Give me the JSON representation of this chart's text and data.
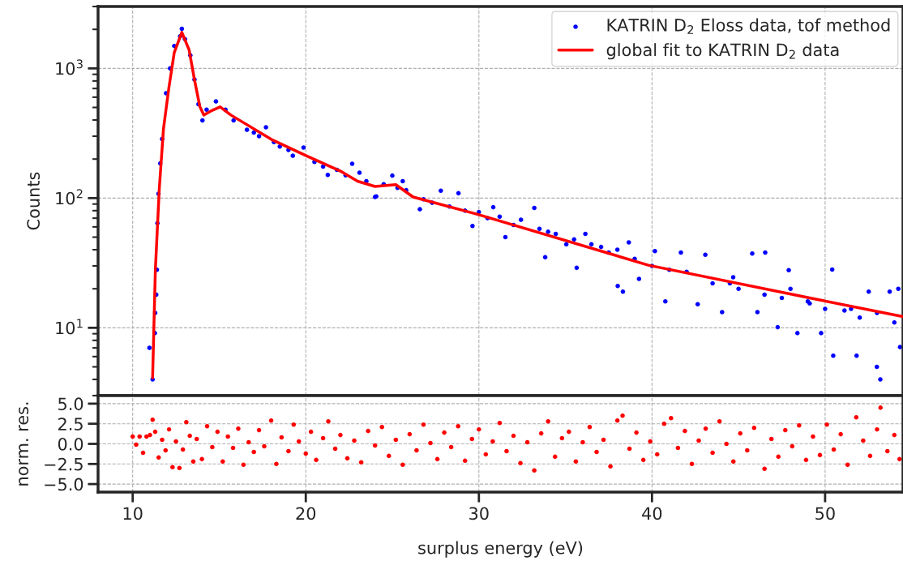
{
  "chart_data": [
    {
      "type": "scatter",
      "ylabel": "Counts",
      "log": "y",
      "xlim": [
        8,
        54.5
      ],
      "ylim": [
        3,
        3000
      ],
      "xticks": [
        10,
        20,
        30,
        40,
        50
      ],
      "yticks": [
        {
          "value": 10,
          "label": "10$^{1}$"
        },
        {
          "value": 100,
          "label": "10$^{2}$"
        },
        {
          "value": 1000,
          "label": "10$^{3}$"
        }
      ],
      "tick_labels": "y",
      "grid": true,
      "legend": "top right",
      "marker": "circle",
      "series": [
        {
          "name": "KATRIN D$_{2}$ Eloss data, tof method",
          "color": "#0000ff",
          "x": [
            10.97,
            11.15,
            11.28,
            11.3,
            11.36,
            11.4,
            11.43,
            11.49,
            11.59,
            11.7,
            11.93,
            12.16,
            12.4,
            12.74,
            12.84,
            13.02,
            13.33,
            13.57,
            13.8,
            14.03,
            14.27,
            14.81,
            15.36,
            15.83,
            16.6,
            17.0,
            17.3,
            17.7,
            18.16,
            18.5,
            19.0,
            19.25,
            19.87,
            20.5,
            21.0,
            21.27,
            21.8,
            22.3,
            22.68,
            23.1,
            23.5,
            24.0,
            24.07,
            24.5,
            25.0,
            25.3,
            25.6,
            25.8,
            26.59,
            26.8,
            27.3,
            27.8,
            28.3,
            28.82,
            29.2,
            29.63,
            30.0,
            30.5,
            30.83,
            31.2,
            31.53,
            32.0,
            32.43,
            33.2,
            33.5,
            33.83,
            34.0,
            34.44,
            35.05,
            35.5,
            35.65,
            36.15,
            36.5,
            37.06,
            37.5,
            38.0,
            38.02,
            38.32,
            38.66,
            39.0,
            39.25,
            40.0,
            40.17,
            40.77,
            41.0,
            41.67,
            42.0,
            42.64,
            43.08,
            43.5,
            44.05,
            44.5,
            44.69,
            45.0,
            45.79,
            46.09,
            46.5,
            46.54,
            47.26,
            47.5,
            47.9,
            48.0,
            48.4,
            49.0,
            49.11,
            49.77,
            50.0,
            50.41,
            50.47,
            51.12,
            51.5,
            51.82,
            52.0,
            52.52,
            52.99,
            53.0,
            53.19,
            53.73,
            54.0,
            54.23,
            54.33
          ],
          "values": [
            7.0,
            4.0,
            9.1,
            13,
            18,
            28,
            64,
            108,
            185,
            285,
            643,
            1000,
            1490,
            1770,
            2018,
            1680,
            1260,
            820,
            530,
            397,
            481,
            556,
            481,
            397,
            336,
            320,
            300,
            352,
            270,
            250,
            235,
            212,
            245,
            190,
            175,
            151,
            165,
            150,
            184,
            157,
            135,
            102,
            103,
            128,
            149,
            120,
            135,
            115,
            82,
            98,
            92,
            114,
            86,
            109,
            80,
            61,
            78,
            70,
            85,
            72,
            50,
            62,
            68,
            84,
            58,
            35,
            55,
            53,
            44,
            48,
            29,
            53,
            44,
            42,
            38,
            40,
            21,
            19,
            45.5,
            34,
            23.8,
            30,
            39,
            16,
            28,
            38,
            27,
            15.2,
            36.6,
            22,
            13.2,
            22,
            24.5,
            20,
            37.4,
            13.2,
            18,
            38,
            10.1,
            17,
            27.8,
            20,
            9.1,
            16,
            15.4,
            9.1,
            14,
            28.1,
            6.1,
            13.6,
            14,
            6.1,
            12,
            19,
            5.0,
            13,
            4.0,
            19,
            11,
            20,
            7.1
          ]
        },
        {
          "name": "global fit to KATRIN D$_{2}$ data",
          "type": "line",
          "color": "#ff0000",
          "marker": "none",
          "line_style": "solid",
          "x": [
            11.15,
            11.31,
            11.54,
            11.78,
            12.09,
            12.4,
            12.84,
            13.26,
            13.57,
            13.88,
            14.11,
            14.6,
            15.05,
            15.67,
            18.0,
            20.03,
            22.06,
            22.99,
            24.0,
            25.2,
            26.2,
            29.92,
            39.79,
            49.69,
            54.49
          ],
          "values": [
            4.1,
            28,
            120,
            343,
            708,
            1322,
            1897,
            1387,
            817,
            507,
            437,
            475,
            505,
            437,
            284,
            212,
            160,
            135,
            123,
            127,
            102,
            75,
            30.4,
            16.4,
            12.2
          ]
        }
      ]
    },
    {
      "type": "scatter",
      "xlabel": "surplus energy (eV)",
      "ylabel": "norm. res.",
      "xlim": [
        8,
        54.5
      ],
      "ylim": [
        -6,
        6
      ],
      "xticks": [
        10,
        20,
        30,
        40,
        50
      ],
      "yticks": [
        {
          "value": -5,
          "label": "−5.0"
        },
        {
          "value": -2.5,
          "label": "−2.5"
        },
        {
          "value": 0,
          "label": "0.0"
        },
        {
          "value": 2.5,
          "label": "2.5"
        },
        {
          "value": 5,
          "label": "5.0"
        }
      ],
      "grid": true,
      "marker": "circle",
      "series": [
        {
          "color": "#ff0000",
          "x": [
            10.0,
            10.2,
            10.4,
            10.6,
            10.8,
            11.0,
            11.15,
            11.3,
            11.5,
            11.7,
            11.9,
            12.1,
            12.3,
            12.5,
            12.7,
            12.9,
            13.1,
            13.3,
            13.5,
            13.7,
            14.0,
            14.3,
            14.6,
            14.9,
            15.2,
            15.5,
            15.8,
            16.1,
            16.4,
            16.7,
            17.0,
            17.3,
            17.6,
            18.0,
            18.3,
            18.6,
            19.0,
            19.3,
            19.6,
            20.0,
            20.3,
            20.6,
            21.0,
            21.3,
            21.7,
            22.0,
            22.4,
            22.8,
            23.2,
            23.6,
            24.0,
            24.4,
            24.8,
            25.2,
            25.6,
            26.0,
            26.4,
            26.8,
            27.2,
            27.6,
            28.0,
            28.4,
            28.8,
            29.2,
            29.6,
            30.0,
            30.4,
            30.8,
            31.2,
            31.6,
            32.0,
            32.4,
            32.8,
            33.2,
            33.6,
            34.0,
            34.4,
            34.8,
            35.2,
            35.6,
            36.0,
            36.4,
            36.8,
            37.2,
            37.6,
            38.0,
            38.3,
            38.7,
            39.1,
            39.5,
            39.9,
            40.3,
            40.7,
            41.1,
            41.5,
            41.9,
            42.3,
            42.7,
            43.1,
            43.5,
            43.9,
            44.3,
            44.7,
            45.1,
            45.5,
            45.9,
            46.5,
            46.9,
            47.3,
            47.7,
            48.1,
            48.5,
            48.9,
            49.3,
            49.7,
            50.1,
            50.5,
            50.9,
            51.3,
            51.8,
            52.2,
            52.6,
            53.0,
            53.2,
            53.6,
            54.0,
            54.3
          ],
          "values": [
            0.9,
            -0.1,
            0.9,
            -1.1,
            0.9,
            1.1,
            3.0,
            1.5,
            -1.7,
            0.5,
            -0.8,
            1.8,
            -2.9,
            0.3,
            -3.0,
            -0.7,
            2.7,
            1.0,
            -2.2,
            0.6,
            -1.9,
            2.2,
            -0.4,
            1.5,
            -2.2,
            0.9,
            -0.5,
            1.9,
            -2.6,
            0.2,
            -1.0,
            1.7,
            -0.3,
            2.9,
            -2.5,
            0.8,
            -0.9,
            2.4,
            0.3,
            -1.2,
            1.5,
            -2.0,
            0.7,
            2.8,
            -0.6,
            1.1,
            -1.8,
            0.4,
            -2.3,
            1.6,
            -0.2,
            2.1,
            -1.5,
            0.5,
            -2.6,
            1.2,
            -0.8,
            2.4,
            0.1,
            -1.9,
            1.4,
            -0.4,
            2.2,
            -2.1,
            0.6,
            1.8,
            -1.3,
            0.3,
            2.6,
            -0.9,
            1.0,
            -2.4,
            0.2,
            -3.3,
            1.3,
            2.8,
            -1.6,
            0.7,
            1.5,
            -2.2,
            0.2,
            2.1,
            -1.0,
            0.5,
            -2.8,
            2.9,
            3.5,
            -0.6,
            1.4,
            -2.0,
            0.3,
            -1.3,
            2.5,
            3.2,
            -0.5,
            1.6,
            -2.5,
            0.4,
            1.9,
            -1.1,
            2.8,
            0.0,
            -2.2,
            1.3,
            -0.8,
            2.0,
            -3.1,
            0.6,
            -1.6,
            1.7,
            -0.3,
            2.3,
            -2.0,
            0.9,
            -1.4,
            2.4,
            -0.7,
            1.2,
            -2.6,
            3.3,
            0.4,
            -1.5,
            1.8,
            4.5,
            -0.9,
            1.1,
            -1.9
          ]
        }
      ]
    }
  ]
}
